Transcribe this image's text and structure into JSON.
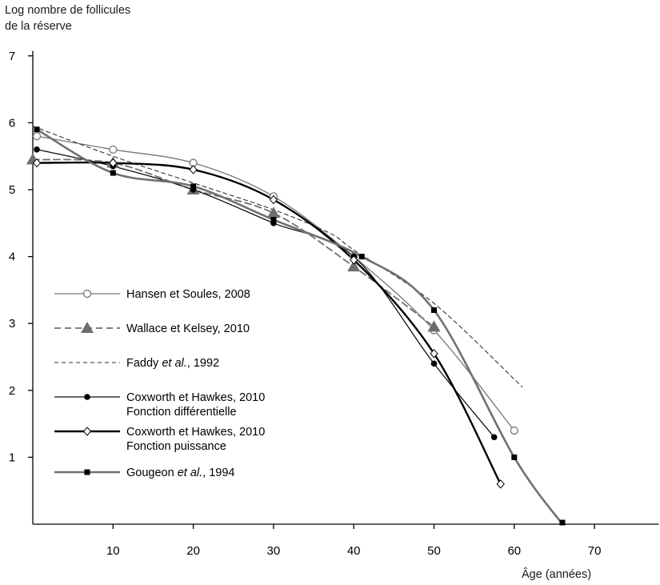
{
  "chart_data": {
    "type": "line",
    "ylabel_line1": "Log nombre de follicules",
    "ylabel_line2": "de la réserve",
    "xlabel": "Âge (années)",
    "xlim": [
      0,
      78
    ],
    "ylim": [
      0,
      7
    ],
    "x_ticks": [
      10,
      20,
      30,
      40,
      50,
      60,
      70
    ],
    "y_ticks": [
      1,
      2,
      3,
      4,
      5,
      6,
      7
    ],
    "grid": false,
    "legend_position": "lower-left",
    "series": [
      {
        "name": "Hansen et Soules, 2008",
        "name_parts": [
          {
            "t": "Hansen et Soules, 2008",
            "i": false
          }
        ],
        "line": "solid-thin",
        "marker": "circle-open",
        "color": "#777777",
        "x": [
          0.5,
          10,
          20,
          30,
          40,
          50,
          60
        ],
        "y": [
          5.8,
          5.6,
          5.4,
          4.9,
          4.0,
          2.9,
          1.4
        ]
      },
      {
        "name": "Wallace et Kelsey, 2010",
        "name_parts": [
          {
            "t": "Wallace et Kelsey, 2010",
            "i": false
          }
        ],
        "line": "dashed-thick",
        "marker": "triangle-filled",
        "color": "#6e6e6e",
        "x": [
          0,
          10,
          20,
          30,
          40,
          50
        ],
        "y": [
          5.45,
          5.4,
          5.0,
          4.65,
          3.85,
          2.95
        ]
      },
      {
        "name": "Faddy et al., 1992",
        "name_parts": [
          {
            "t": "Faddy ",
            "i": false
          },
          {
            "t": "et al.",
            "i": true
          },
          {
            "t": ", 1992",
            "i": false
          }
        ],
        "line": "dashed-thin",
        "marker": "none",
        "color": "#333333",
        "x": [
          0,
          10,
          20,
          30,
          37,
          40,
          50,
          61
        ],
        "y": [
          5.95,
          5.5,
          5.1,
          4.7,
          4.35,
          4.1,
          3.3,
          2.05
        ]
      },
      {
        "name": "Coxworth et Hawkes, 2010 Fonction différentielle",
        "name_parts": [
          {
            "t": "Coxworth et Hawkes, 2010",
            "i": false
          }
        ],
        "name_line2": "Fonction différentielle",
        "line": "solid-thin",
        "marker": "circle-filled",
        "color": "#111111",
        "x": [
          0.5,
          10,
          20,
          30,
          40,
          50,
          57.5
        ],
        "y": [
          5.6,
          5.35,
          5.0,
          4.5,
          4.0,
          2.4,
          1.3
        ]
      },
      {
        "name": "Coxworth et Hawkes, 2010 Fonction puissance",
        "name_parts": [
          {
            "t": "Coxworth et Hawkes, 2010",
            "i": false
          }
        ],
        "name_line2": "Fonction puissance",
        "line": "solid-thick",
        "marker": "diamond-open",
        "color": "#000000",
        "x": [
          0.5,
          10,
          20,
          30,
          40,
          50,
          58.3
        ],
        "y": [
          5.4,
          5.4,
          5.3,
          4.85,
          3.95,
          2.55,
          0.6
        ]
      },
      {
        "name": "Gougeon et al., 1994",
        "name_parts": [
          {
            "t": "Gougeon ",
            "i": false
          },
          {
            "t": "et al.",
            "i": true
          },
          {
            "t": ", 1994",
            "i": false
          }
        ],
        "line": "solid-thick-gray",
        "marker": "square-filled",
        "color": "#707070",
        "x": [
          0.5,
          10,
          20,
          30,
          41,
          50,
          60,
          66
        ],
        "y": [
          5.9,
          5.25,
          5.05,
          4.55,
          4.0,
          3.2,
          1.0,
          0.0
        ]
      }
    ]
  }
}
